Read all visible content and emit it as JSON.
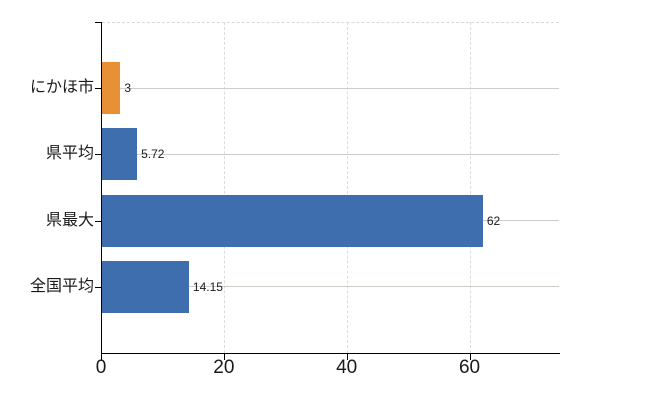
{
  "chart_data": {
    "type": "bar",
    "orientation": "horizontal",
    "title": "",
    "xlabel": "",
    "ylabel": "",
    "categories": [
      "にかほ市",
      "県平均",
      "県最大",
      "全国平均"
    ],
    "values": [
      3,
      5.72,
      62,
      14.15
    ],
    "value_labels": [
      "3",
      "5.72",
      "62",
      "14.15"
    ],
    "bar_colors": [
      "#e89036",
      "#3e6ead",
      "#3e6ead",
      "#3e6ead"
    ],
    "xticks": [
      0,
      20,
      40,
      60
    ],
    "xtick_labels": [
      "0",
      "20",
      "40",
      "60"
    ],
    "xlim": [
      0,
      74.4
    ],
    "legend": "none",
    "grid": {
      "horizontal_gridlines": "solid, one per category",
      "vertical_gridlines": "dashed at 20/40/60",
      "plot_top_border": "dashed"
    }
  },
  "colors": {
    "background": "#ffffff",
    "axis": "#000000",
    "text": "#1a1a1a",
    "gridline_horizontal": "#c7cfc7",
    "gridline_vertical": "#dcdcdc",
    "bar_highlight_orange": "#e89036",
    "bar_blue": "#3e6ead"
  }
}
